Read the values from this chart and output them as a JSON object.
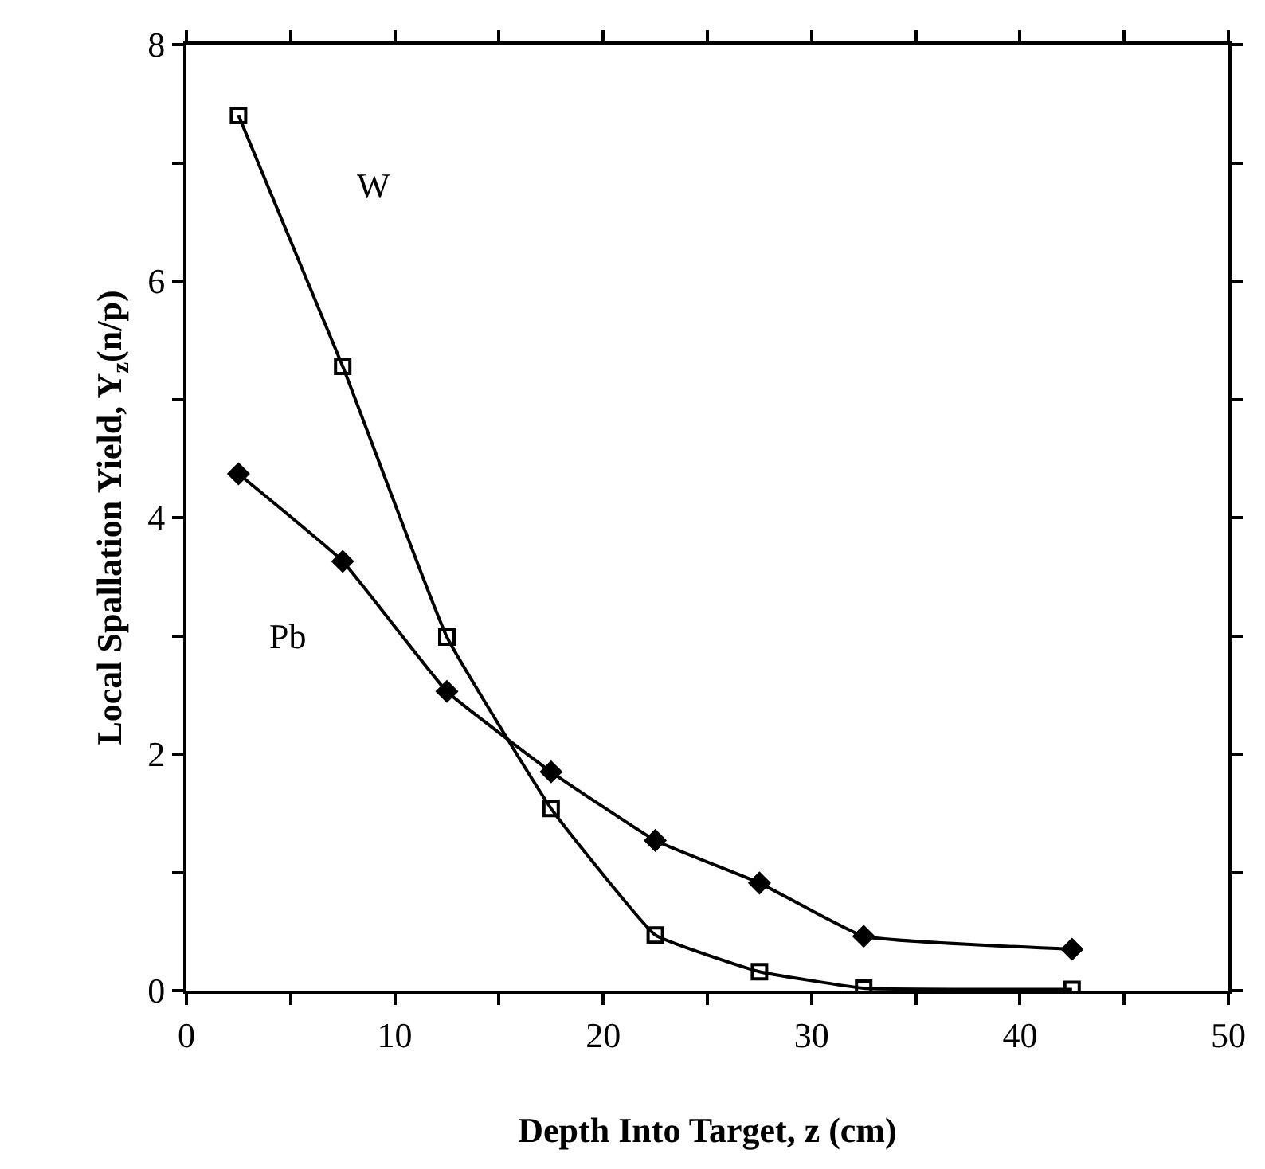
{
  "chart_data": {
    "type": "line",
    "x": [
      2.5,
      7.5,
      12.5,
      17.5,
      22.5,
      27.5,
      32.5,
      42.5
    ],
    "series": [
      {
        "name": "W",
        "color": "#000000",
        "marker": "square",
        "values": [
          7.4,
          5.28,
          2.99,
          1.54,
          0.47,
          0.16,
          0.02,
          0.01
        ]
      },
      {
        "name": "Pb",
        "color": "#000000",
        "marker": "diamond",
        "values": [
          4.37,
          3.63,
          2.53,
          1.85,
          1.27,
          0.91,
          0.46,
          0.35
        ]
      }
    ],
    "xlabel": "Depth Into Target, z (cm)",
    "ylabel": "Local Spallation Yield, Y$_{z}$(n/p)",
    "xlim": [
      0,
      50
    ],
    "xticks": [
      0,
      {
        "value": 5,
        "label": null
      },
      10,
      {
        "value": 15,
        "label": null
      },
      20,
      {
        "value": 25,
        "label": null
      },
      30,
      {
        "value": 35,
        "label": null
      },
      40,
      {
        "value": 45,
        "label": null
      },
      50
    ],
    "ylim": [
      0,
      8
    ],
    "yticks": [
      0,
      {
        "value": 1,
        "label": null
      },
      2,
      {
        "value": 3,
        "label": null
      },
      4,
      {
        "value": 5,
        "label": null
      },
      6,
      {
        "value": 7,
        "label": null
      },
      8
    ],
    "line_style": "solid"
  }
}
